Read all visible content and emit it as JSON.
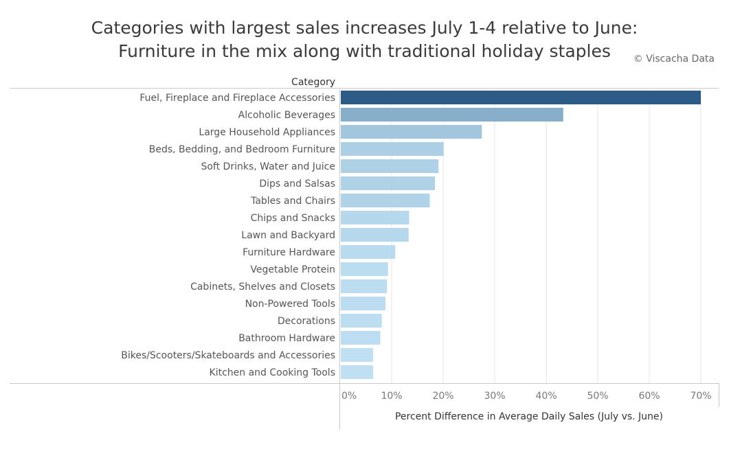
{
  "title": {
    "line1": "Categories with largest sales increases July 1-4 relative to June:",
    "line2": "Furniture in the mix along with traditional holiday staples"
  },
  "credit": "© Viscacha Data",
  "chart_data": {
    "type": "bar",
    "orientation": "horizontal",
    "category_header": "Category",
    "xlabel": "Percent Difference in Average Daily Sales (July vs. June)",
    "ylabel": "",
    "xlim": [
      0,
      72
    ],
    "x_ticks": [
      0,
      10,
      20,
      30,
      40,
      50,
      60,
      70
    ],
    "x_tick_labels": [
      "0%",
      "10%",
      "20%",
      "30%",
      "40%",
      "50%",
      "60%",
      "70%"
    ],
    "grid": "vertical",
    "categories": [
      "Fuel, Fireplace and Fireplace Accessories",
      "Alcoholic Beverages",
      "Large Household Appliances",
      "Beds, Bedding, and Bedroom Furniture",
      "Soft Drinks, Water and Juice",
      "Dips and Salsas",
      "Tables and Chairs",
      "Chips and Snacks",
      "Lawn and Backyard",
      "Furniture Hardware",
      "Vegetable Protein",
      "Cabinets, Shelves and Closets",
      "Non-Powered Tools",
      "Decorations",
      "Bathroom Hardware",
      "Bikes/Scooters/Skateboards and Accessories",
      "Kitchen and Cooking Tools"
    ],
    "values": [
      70,
      43.3,
      27.5,
      20.1,
      19.1,
      18.4,
      17.4,
      13.4,
      13.3,
      10.7,
      9.3,
      9.1,
      8.8,
      8.1,
      7.8,
      6.4,
      6.4
    ],
    "colors": {
      "high": "#2b5b86",
      "low": "#bfe0f3"
    }
  }
}
